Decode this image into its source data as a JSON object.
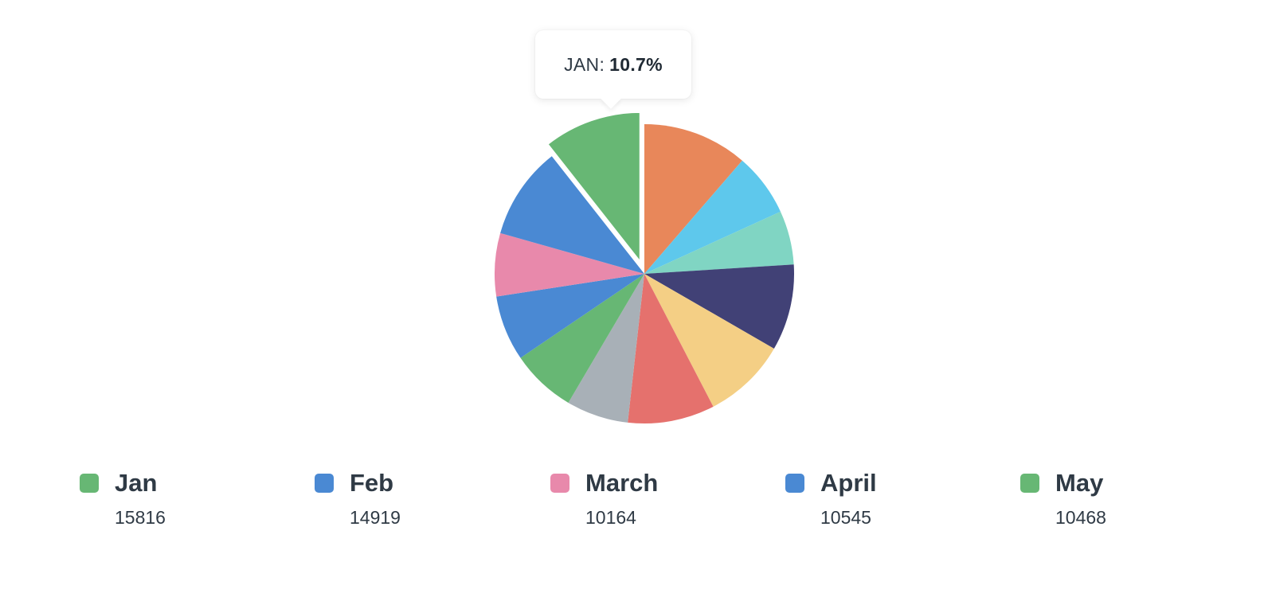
{
  "chart_data": {
    "type": "pie",
    "tooltip": {
      "label": "JAN:",
      "value": "10.7%"
    },
    "slices": [
      {
        "label": "Jan",
        "value": 15816,
        "color": "#67b774",
        "exploded": true
      },
      {
        "label": "",
        "value": 16900,
        "color": "#e8875a",
        "exploded": false
      },
      {
        "label": "",
        "value": 10200,
        "color": "#5ec8ec",
        "exploded": false
      },
      {
        "label": "",
        "value": 8700,
        "color": "#80d5c3",
        "exploded": false
      },
      {
        "label": "",
        "value": 13900,
        "color": "#414176",
        "exploded": false
      },
      {
        "label": "",
        "value": 13500,
        "color": "#f4cf85",
        "exploded": false
      },
      {
        "label": "",
        "value": 14000,
        "color": "#e5716d",
        "exploded": false
      },
      {
        "label": "",
        "value": 10000,
        "color": "#a8b0b7",
        "exploded": false
      },
      {
        "label": "May",
        "value": 10468,
        "color": "#67b774",
        "exploded": false
      },
      {
        "label": "April",
        "value": 10545,
        "color": "#4a89d3",
        "exploded": false
      },
      {
        "label": "March",
        "value": 10164,
        "color": "#e889ab",
        "exploded": false
      },
      {
        "label": "Feb",
        "value": 14919,
        "color": "#4a89d3",
        "exploded": false
      }
    ],
    "legend": [
      {
        "label": "Jan",
        "value": "15816",
        "color": "#67b774"
      },
      {
        "label": "Feb",
        "value": "14919",
        "color": "#4a89d3"
      },
      {
        "label": "March",
        "value": "10164",
        "color": "#e889ab"
      },
      {
        "label": "April",
        "value": "10545",
        "color": "#4a89d3"
      },
      {
        "label": "May",
        "value": "10468",
        "color": "#67b774"
      }
    ]
  }
}
